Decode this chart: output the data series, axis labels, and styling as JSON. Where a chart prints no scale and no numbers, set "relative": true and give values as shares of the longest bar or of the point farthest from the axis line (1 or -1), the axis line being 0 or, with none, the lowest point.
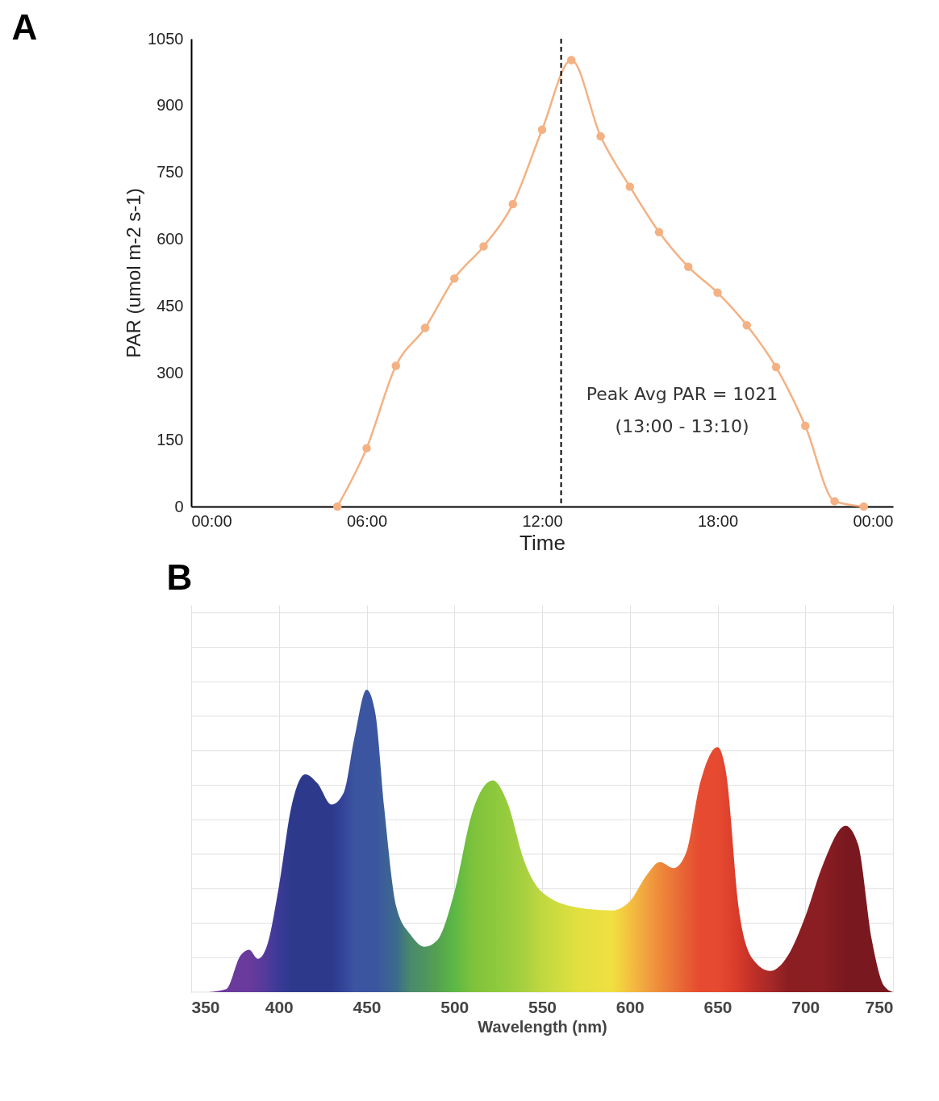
{
  "chart_data": [
    {
      "type": "line",
      "title": "A",
      "xlabel": "Time",
      "ylabel": "PAR (umol m-2 s-1)",
      "x": [
        5,
        6,
        7,
        8,
        9,
        10,
        11,
        12,
        13,
        14,
        15,
        16,
        17,
        18,
        19,
        20,
        21,
        22,
        23
      ],
      "series": [
        {
          "color": "#f4b183",
          "values": [
            0,
            131,
            316,
            401,
            512,
            584,
            679,
            846,
            1002,
            831,
            718,
            616,
            538,
            480,
            407,
            313,
            181,
            12,
            0
          ]
        }
      ],
      "xlim": [
        0,
        24
      ],
      "xticks": [
        {
          "value": 0,
          "label": "00:00"
        },
        {
          "value": 6,
          "label": "06:00"
        },
        {
          "value": 12,
          "label": "12:00"
        },
        {
          "value": 18,
          "label": "18:00"
        },
        {
          "value": 24,
          "label": "00:00"
        }
      ],
      "ylim": [
        0,
        1050
      ],
      "yticks": [
        0,
        150,
        300,
        450,
        600,
        750,
        900,
        1050
      ],
      "ref_lines": [
        {
          "axis": "x",
          "value": 12.65,
          "color": "#000000",
          "line_style": "dashed"
        }
      ],
      "annotations": [
        "Peak Avg PAR = 1021",
        "(13:00 - 13:10)"
      ],
      "marker": "circle",
      "grid": false
    },
    {
      "type": "area",
      "title": "B",
      "xlabel": "Wavelength (nm)",
      "relative": true,
      "x": [
        360,
        370,
        378,
        383,
        388,
        393,
        400,
        407,
        415,
        422,
        430,
        437,
        443,
        450,
        455,
        460,
        467,
        475,
        483,
        490,
        500,
        510,
        522,
        530,
        540,
        550,
        570,
        590,
        600,
        610,
        617,
        625,
        632,
        640,
        650,
        655,
        662,
        670,
        680,
        690,
        700,
        710,
        723,
        730,
        738,
        745,
        750
      ],
      "series": [
        {
          "values": [
            0,
            0.01,
            0.12,
            0.14,
            0.11,
            0.15,
            0.35,
            0.61,
            0.72,
            0.69,
            0.62,
            0.66,
            0.84,
            1,
            0.92,
            0.61,
            0.28,
            0.19,
            0.15,
            0.17,
            0.33,
            0.59,
            0.7,
            0.63,
            0.43,
            0.33,
            0.28,
            0.27,
            0.3,
            0.39,
            0.43,
            0.41,
            0.46,
            0.69,
            0.81,
            0.72,
            0.28,
            0.11,
            0.07,
            0.12,
            0.25,
            0.42,
            0.55,
            0.49,
            0.17,
            0.02,
            0
          ],
          "colors": [
            "#6a3a9c",
            "#6a3a9c",
            "#6a3a9c",
            "#6a3a9c",
            "#5e3a9c",
            "#523a9a",
            "#3a3a96",
            "#2d3a8c",
            "#2d3a8c",
            "#2d3a8c",
            "#2d3a8c",
            "#34459a",
            "#3b55a0",
            "#3b55a0",
            "#3b55a0",
            "#3c5f98",
            "#3c6a8c",
            "#4a8a6a",
            "#4e9460",
            "#55a050",
            "#5cb845",
            "#7cc23c",
            "#8cc83c",
            "#96cc3e",
            "#a8d040",
            "#c0d840",
            "#e0e040",
            "#f0e040",
            "#f4c040",
            "#f0a040",
            "#ee8a3a",
            "#ea7438",
            "#e86034",
            "#e64a30",
            "#e64a30",
            "#e0442e",
            "#d83a2a",
            "#c03028",
            "#a82828",
            "#8a1e22",
            "#8a1e22",
            "#8a1e22",
            "#7a1820",
            "#7a1820",
            "#7a1820",
            "#7a1820",
            "#7a1820"
          ]
        }
      ],
      "xlim": [
        350,
        750
      ],
      "xticks": [
        350,
        400,
        450,
        500,
        550,
        600,
        650,
        700,
        750
      ],
      "grid": true
    }
  ]
}
